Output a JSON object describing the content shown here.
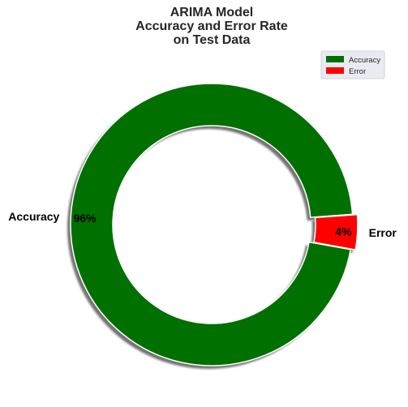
{
  "chart_data": {
    "type": "pie",
    "style": "donut",
    "title_lines": [
      "ARIMA Model",
      "Accuracy and Error Rate",
      "on Test Data"
    ],
    "slices": [
      {
        "label": "Accuracy",
        "value": 96,
        "pct_label": "96%",
        "color": "#007000"
      },
      {
        "label": "Error",
        "value": 4,
        "pct_label": "4%",
        "color": "#ff0000"
      }
    ],
    "legend": {
      "placement": "top-right",
      "entries": [
        "Accuracy",
        "Error"
      ]
    },
    "shadow": true
  }
}
